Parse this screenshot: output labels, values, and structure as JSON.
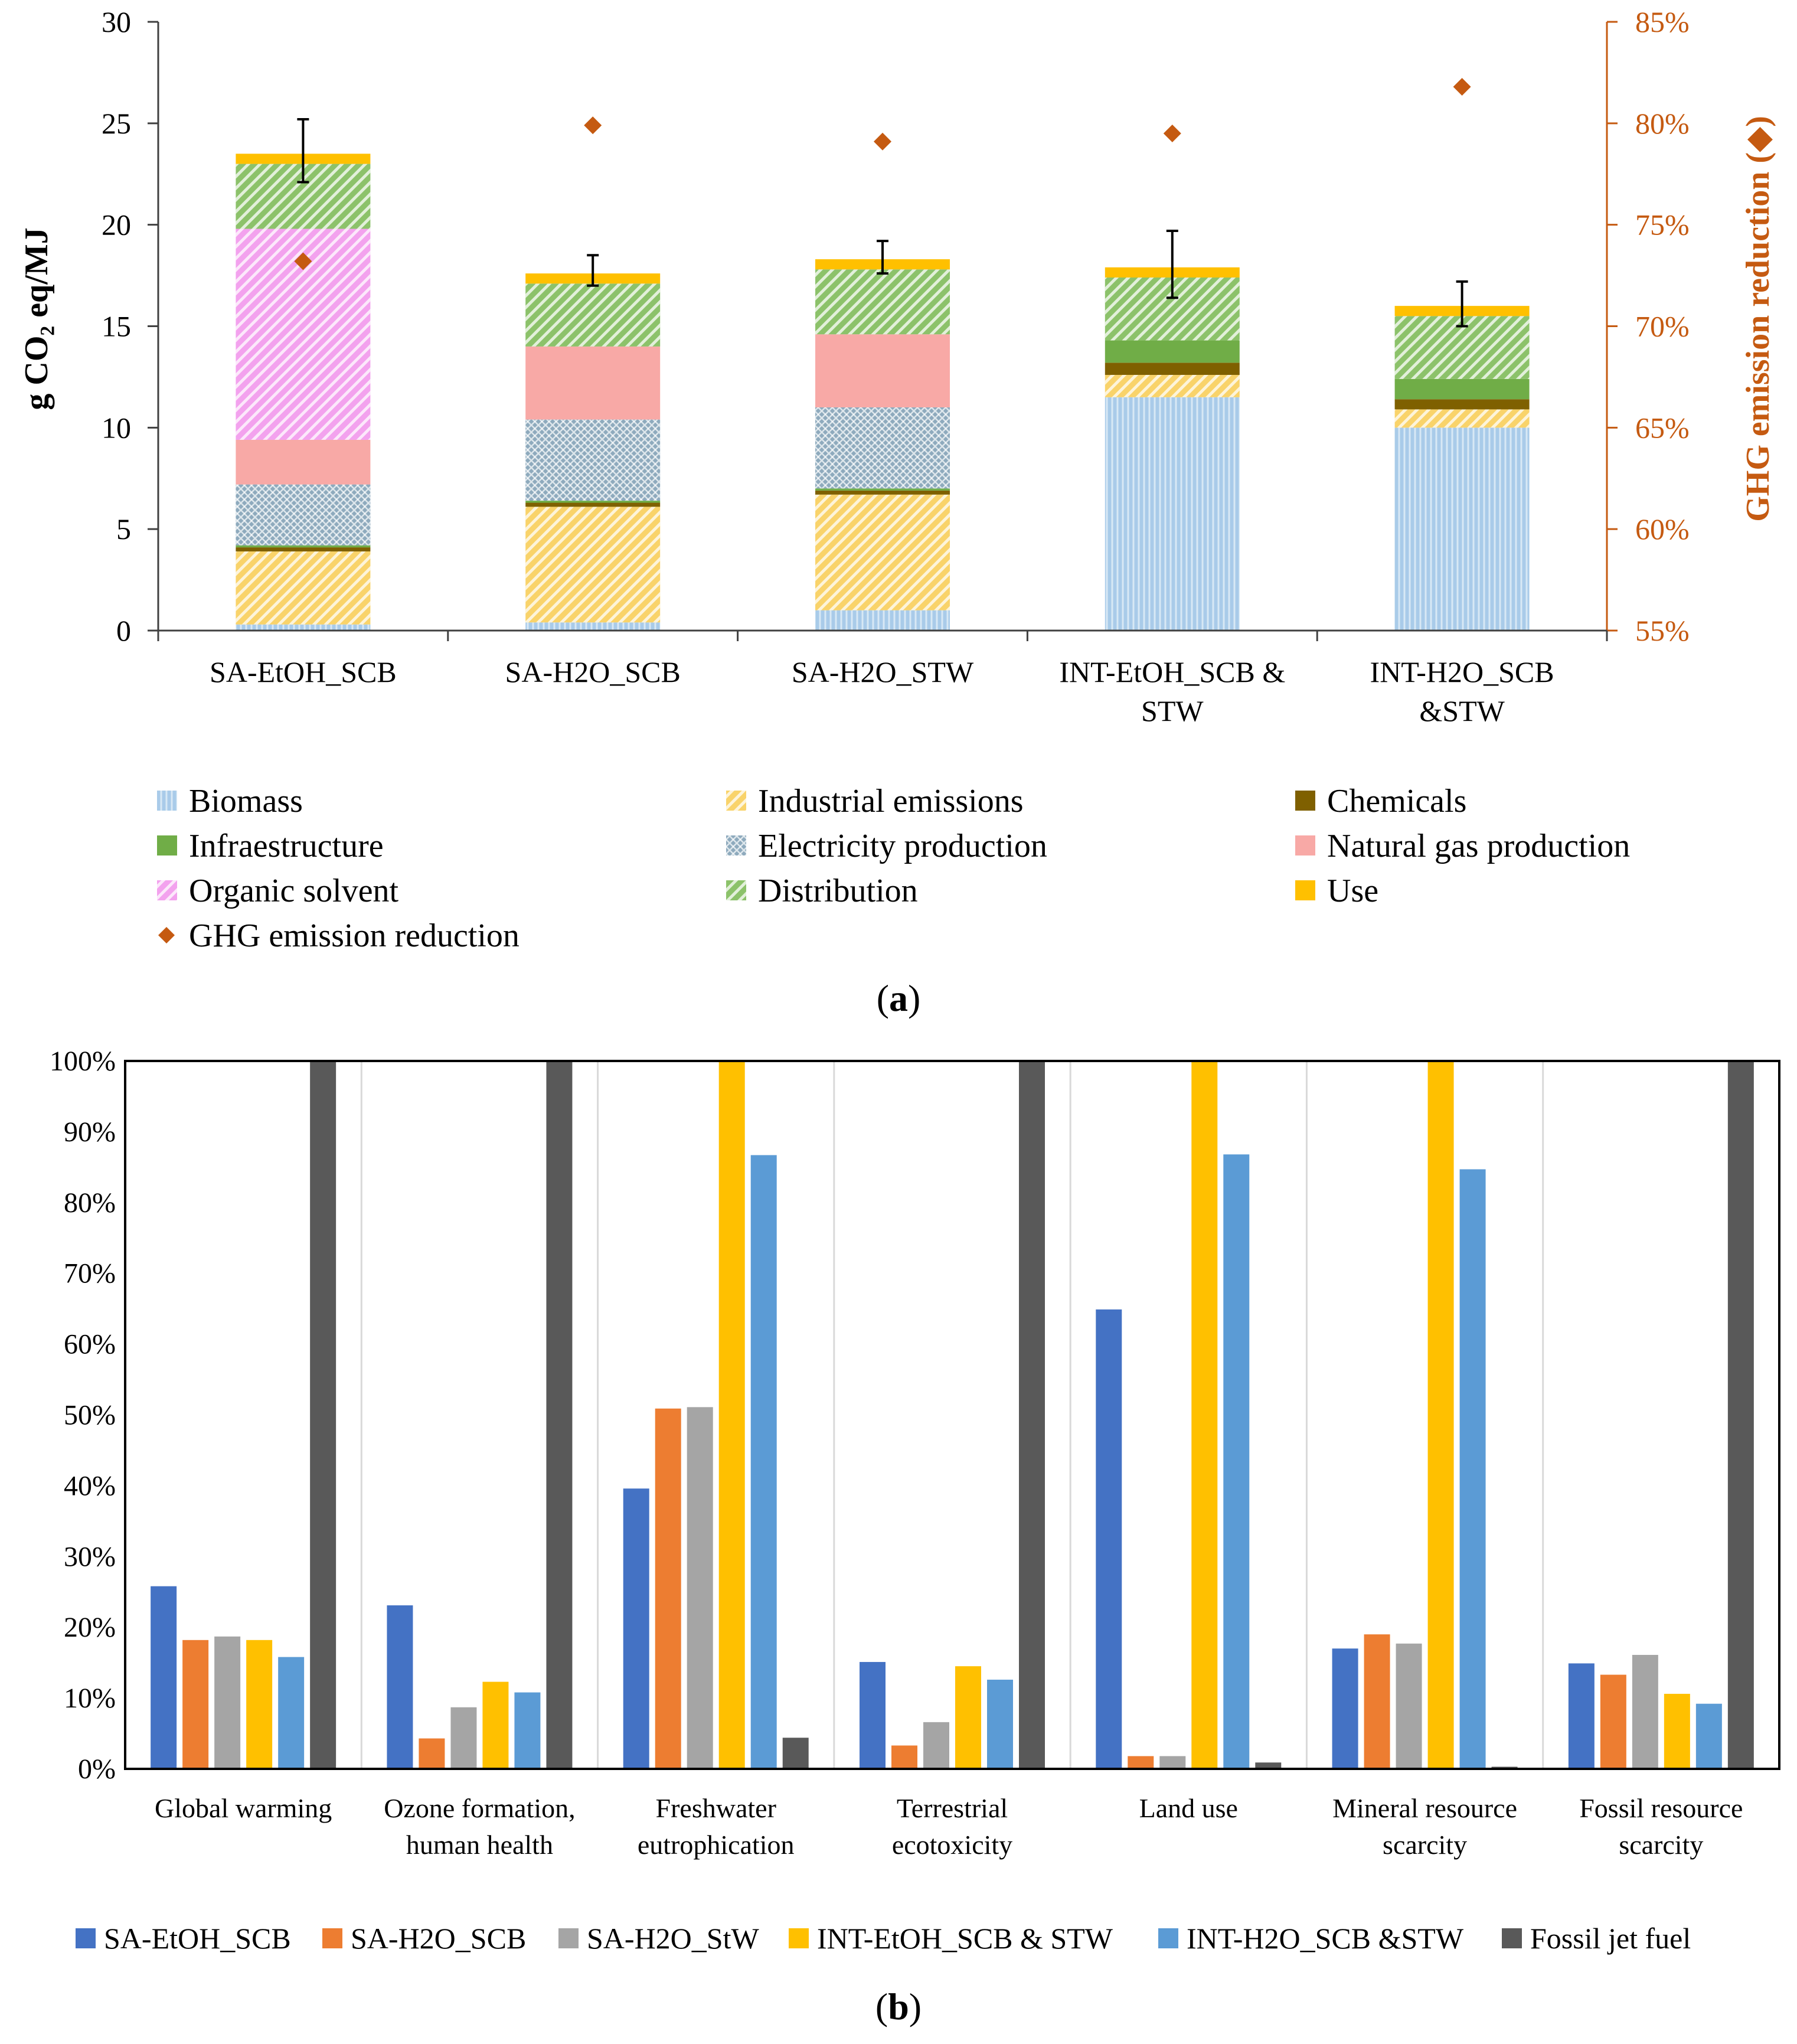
{
  "chart_data": [
    {
      "id": "a",
      "type": "bar",
      "stacked": true,
      "panel_label": "(a)",
      "panel_letter": "a",
      "ylabel": "g CO₂ eq/MJ",
      "ylim": [
        0,
        30
      ],
      "yticks": [
        "0",
        "5",
        "10",
        "15",
        "20",
        "25",
        "30"
      ],
      "y2label": "GHG emission reduction (◆)",
      "y2lim": [
        55,
        85
      ],
      "y2ticks": [
        "55%",
        "60%",
        "65%",
        "70%",
        "75%",
        "80%",
        "85%"
      ],
      "categories": [
        [
          "SA-EtOH_SCB"
        ],
        [
          "SA-H2O_SCB"
        ],
        [
          "SA-H2O_STW"
        ],
        [
          "INT-EtOH_SCB &",
          "STW"
        ],
        [
          "INT-H2O_SCB",
          "&STW"
        ]
      ],
      "series": [
        {
          "name": "Biomass",
          "color": "#a9cbe9",
          "pattern": "vlines",
          "values": [
            0.3,
            0.4,
            1.0,
            11.5,
            10.0
          ]
        },
        {
          "name": "Industrial emissions",
          "color": "#f9d36a",
          "pattern": "diag",
          "values": [
            3.6,
            5.7,
            5.7,
            1.1,
            0.9
          ]
        },
        {
          "name": "Chemicals",
          "color": "#7f6000",
          "pattern": "solid",
          "values": [
            0.2,
            0.2,
            0.2,
            0.6,
            0.5
          ]
        },
        {
          "name": "Infraestructure",
          "color": "#70ad47",
          "pattern": "solid",
          "values": [
            0.1,
            0.1,
            0.1,
            1.1,
            1.0
          ]
        },
        {
          "name": "Electricity production",
          "color": "#8eaabd",
          "pattern": "cross",
          "values": [
            3.0,
            4.0,
            4.0,
            0.0,
            0.0
          ]
        },
        {
          "name": "Natural gas production",
          "color": "#f8a9a6",
          "pattern": "solid",
          "values": [
            2.2,
            3.6,
            3.6,
            0.0,
            0.0
          ]
        },
        {
          "name": "Organic solvent",
          "color": "#f3a2ee",
          "pattern": "diag",
          "values": [
            10.4,
            0.0,
            0.0,
            0.0,
            0.0
          ]
        },
        {
          "name": "Distribution",
          "color": "#8cc26a",
          "pattern": "diag",
          "values": [
            3.2,
            3.1,
            3.2,
            3.1,
            3.1
          ]
        },
        {
          "name": "Use",
          "color": "#ffc000",
          "pattern": "solid",
          "values": [
            0.5,
            0.5,
            0.5,
            0.5,
            0.5
          ]
        }
      ],
      "error_bars": {
        "low": [
          22.1,
          17.0,
          17.6,
          16.4,
          15.0
        ],
        "high": [
          25.2,
          18.5,
          19.2,
          19.7,
          17.2
        ]
      },
      "line_series": {
        "name": "GHG emission reduction",
        "axis": "right",
        "marker": "diamond",
        "color": "#c55a11",
        "values": [
          73.2,
          79.9,
          79.1,
          79.5,
          81.8
        ]
      },
      "legend": {
        "position": "bottom",
        "items": [
          {
            "name": "Biomass",
            "ref": 0
          },
          {
            "name": "Industrial emissions",
            "ref": 1
          },
          {
            "name": "Chemicals",
            "ref": 2
          },
          {
            "name": "Infraestructure",
            "ref": 3
          },
          {
            "name": "Electricity production",
            "ref": 4
          },
          {
            "name": "Natural gas production",
            "ref": 5
          },
          {
            "name": "Organic solvent",
            "ref": 6
          },
          {
            "name": "Distribution",
            "ref": 7
          },
          {
            "name": "Use",
            "ref": 8
          },
          {
            "name": "GHG emission reduction",
            "ref": "line"
          }
        ]
      }
    },
    {
      "id": "b",
      "type": "bar",
      "panel_label": "(b)",
      "panel_letter": "b",
      "ylim": [
        0,
        100
      ],
      "yticks": [
        "0%",
        "10%",
        "20%",
        "30%",
        "40%",
        "50%",
        "60%",
        "70%",
        "80%",
        "90%",
        "100%"
      ],
      "grid": true,
      "categories": [
        [
          "Global warming"
        ],
        [
          "Ozone formation,",
          "human health"
        ],
        [
          "Freshwater",
          "eutrophication"
        ],
        [
          "Terrestrial",
          "ecotoxicity"
        ],
        [
          "Land use"
        ],
        [
          "Mineral resource",
          "scarcity"
        ],
        [
          "Fossil resource",
          "scarcity"
        ]
      ],
      "series": [
        {
          "name": "SA-EtOH_SCB",
          "color": "#4472c4",
          "values": [
            25.8,
            23.1,
            39.6,
            15.1,
            64.9,
            17.0,
            14.9
          ]
        },
        {
          "name": "SA-H2O_SCB",
          "color": "#ed7d31",
          "values": [
            18.2,
            4.3,
            50.9,
            3.3,
            1.8,
            19.0,
            13.3
          ]
        },
        {
          "name": "SA-H2O_StW",
          "color": "#a5a5a5",
          "values": [
            18.7,
            8.7,
            51.1,
            6.6,
            1.8,
            17.7,
            16.1
          ]
        },
        {
          "name": "INT-EtOH_SCB & STW",
          "color": "#ffc000",
          "values": [
            18.2,
            12.3,
            100,
            14.5,
            100,
            100,
            10.6
          ]
        },
        {
          "name": "INT-H2O_SCB &STW",
          "color": "#5b9bd5",
          "values": [
            15.8,
            10.8,
            86.7,
            12.6,
            86.8,
            84.7,
            9.2
          ]
        },
        {
          "name": "Fossil jet fuel",
          "color": "#595959",
          "values": [
            100,
            100,
            4.4,
            100,
            0.9,
            0.3,
            100
          ]
        }
      ],
      "legend": {
        "position": "bottom"
      }
    }
  ]
}
